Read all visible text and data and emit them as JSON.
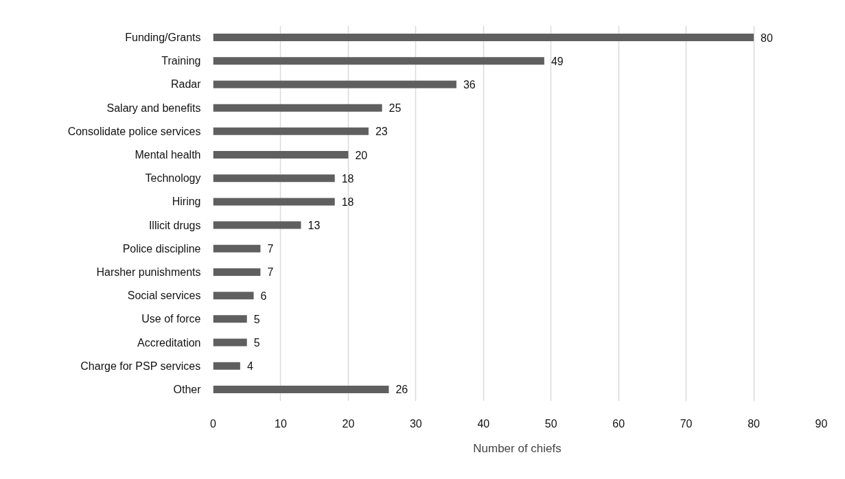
{
  "chart_data": {
    "type": "bar",
    "orientation": "horizontal",
    "categories": [
      "Funding/Grants",
      "Training",
      "Radar",
      "Salary and benefits",
      "Consolidate police services",
      "Mental health",
      "Technology",
      "Hiring",
      "Illicit drugs",
      "Police discipline",
      "Harsher punishments",
      "Social services",
      "Use of force",
      "Accreditation",
      "Charge for PSP services",
      "Other"
    ],
    "values": [
      80,
      49,
      36,
      25,
      23,
      20,
      18,
      18,
      13,
      7,
      7,
      6,
      5,
      5,
      4,
      26
    ],
    "color": "#5f5f5f",
    "xlim": [
      0,
      90
    ],
    "xticks": [
      0,
      10,
      20,
      30,
      40,
      50,
      60,
      70,
      80,
      90
    ],
    "xlabel": "Number of chiefs",
    "grid": "x",
    "data_labels": true
  }
}
